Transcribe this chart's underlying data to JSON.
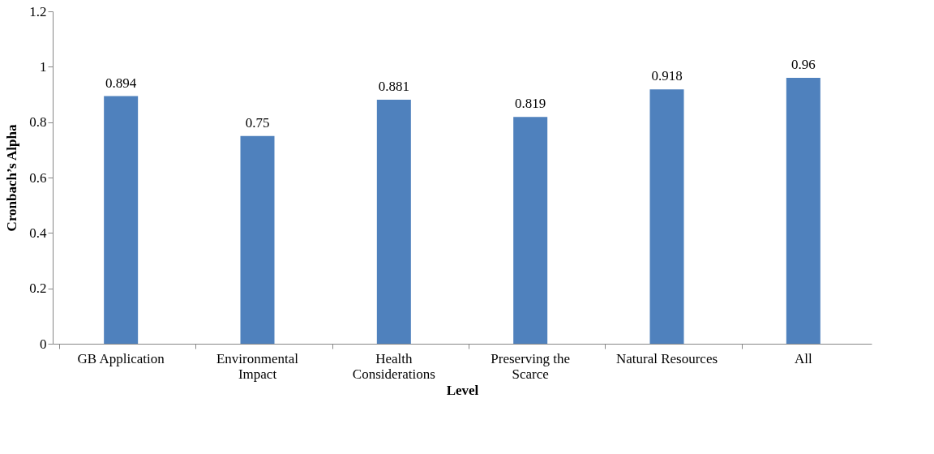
{
  "chart_data": {
    "type": "bar",
    "categories": [
      "GB Application",
      "Environmental Impact",
      "Health Considerations",
      "Preserving the Scarce",
      "Natural Resources",
      "All"
    ],
    "values": [
      0.894,
      0.75,
      0.881,
      0.819,
      0.918,
      0.96
    ],
    "color": "#4f81bd",
    "xlabel": "Level",
    "ylabel": "Cronbach’s Alpha",
    "ylim": [
      0,
      1.2
    ],
    "yticks": [
      0,
      0.2,
      0.4,
      0.6,
      0.8,
      1,
      1.2
    ],
    "data_labels": true,
    "grid": false
  }
}
